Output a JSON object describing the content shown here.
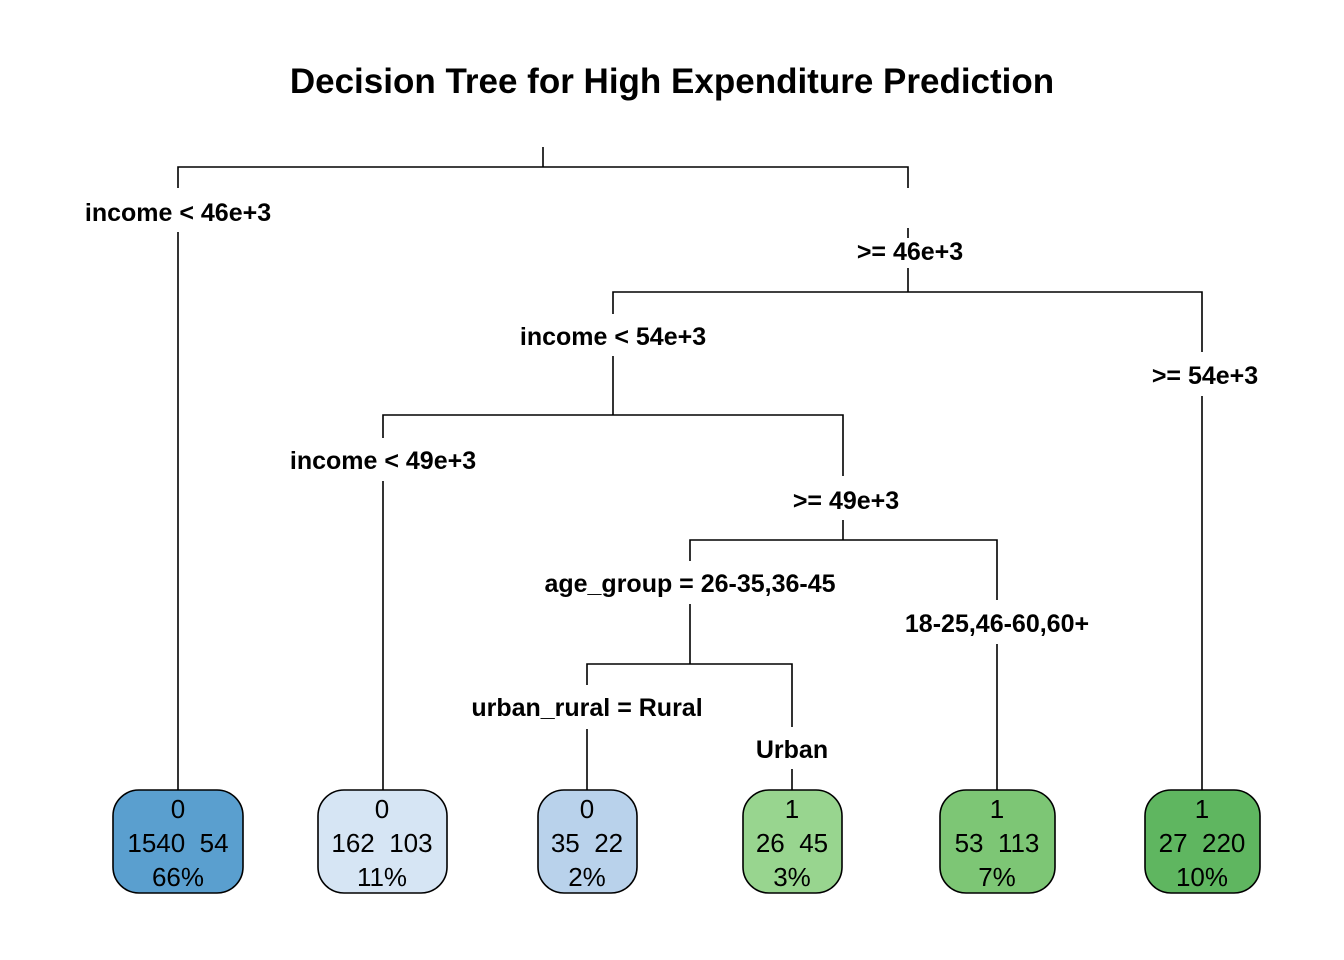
{
  "title": "Decision Tree for High Expenditure Prediction",
  "splits": [
    {
      "left_label": "income < 46e+3",
      "right_label": ">= 46e+3"
    },
    {
      "left_label": "income < 54e+3",
      "right_label": ">= 54e+3"
    },
    {
      "left_label": "income < 49e+3",
      "right_label": ">= 49e+3"
    },
    {
      "left_label": "age_group = 26-35,36-45",
      "right_label": "18-25,46-60,60+"
    },
    {
      "left_label": "urban_rural = Rural",
      "right_label": "Urban"
    }
  ],
  "leaves": [
    {
      "class": "0",
      "counts": "1540  54",
      "percent": "66%",
      "fill": "#5a9fcf"
    },
    {
      "class": "0",
      "counts": "162  103",
      "percent": "11%",
      "fill": "#d6e5f4"
    },
    {
      "class": "0",
      "counts": "35  22",
      "percent": "2%",
      "fill": "#b9d2eb"
    },
    {
      "class": "1",
      "counts": "26  45",
      "percent": "3%",
      "fill": "#98d58f"
    },
    {
      "class": "1",
      "counts": "53  113",
      "percent": "7%",
      "fill": "#7dc675"
    },
    {
      "class": "1",
      "counts": "27  220",
      "percent": "10%",
      "fill": "#5fb660"
    }
  ]
}
